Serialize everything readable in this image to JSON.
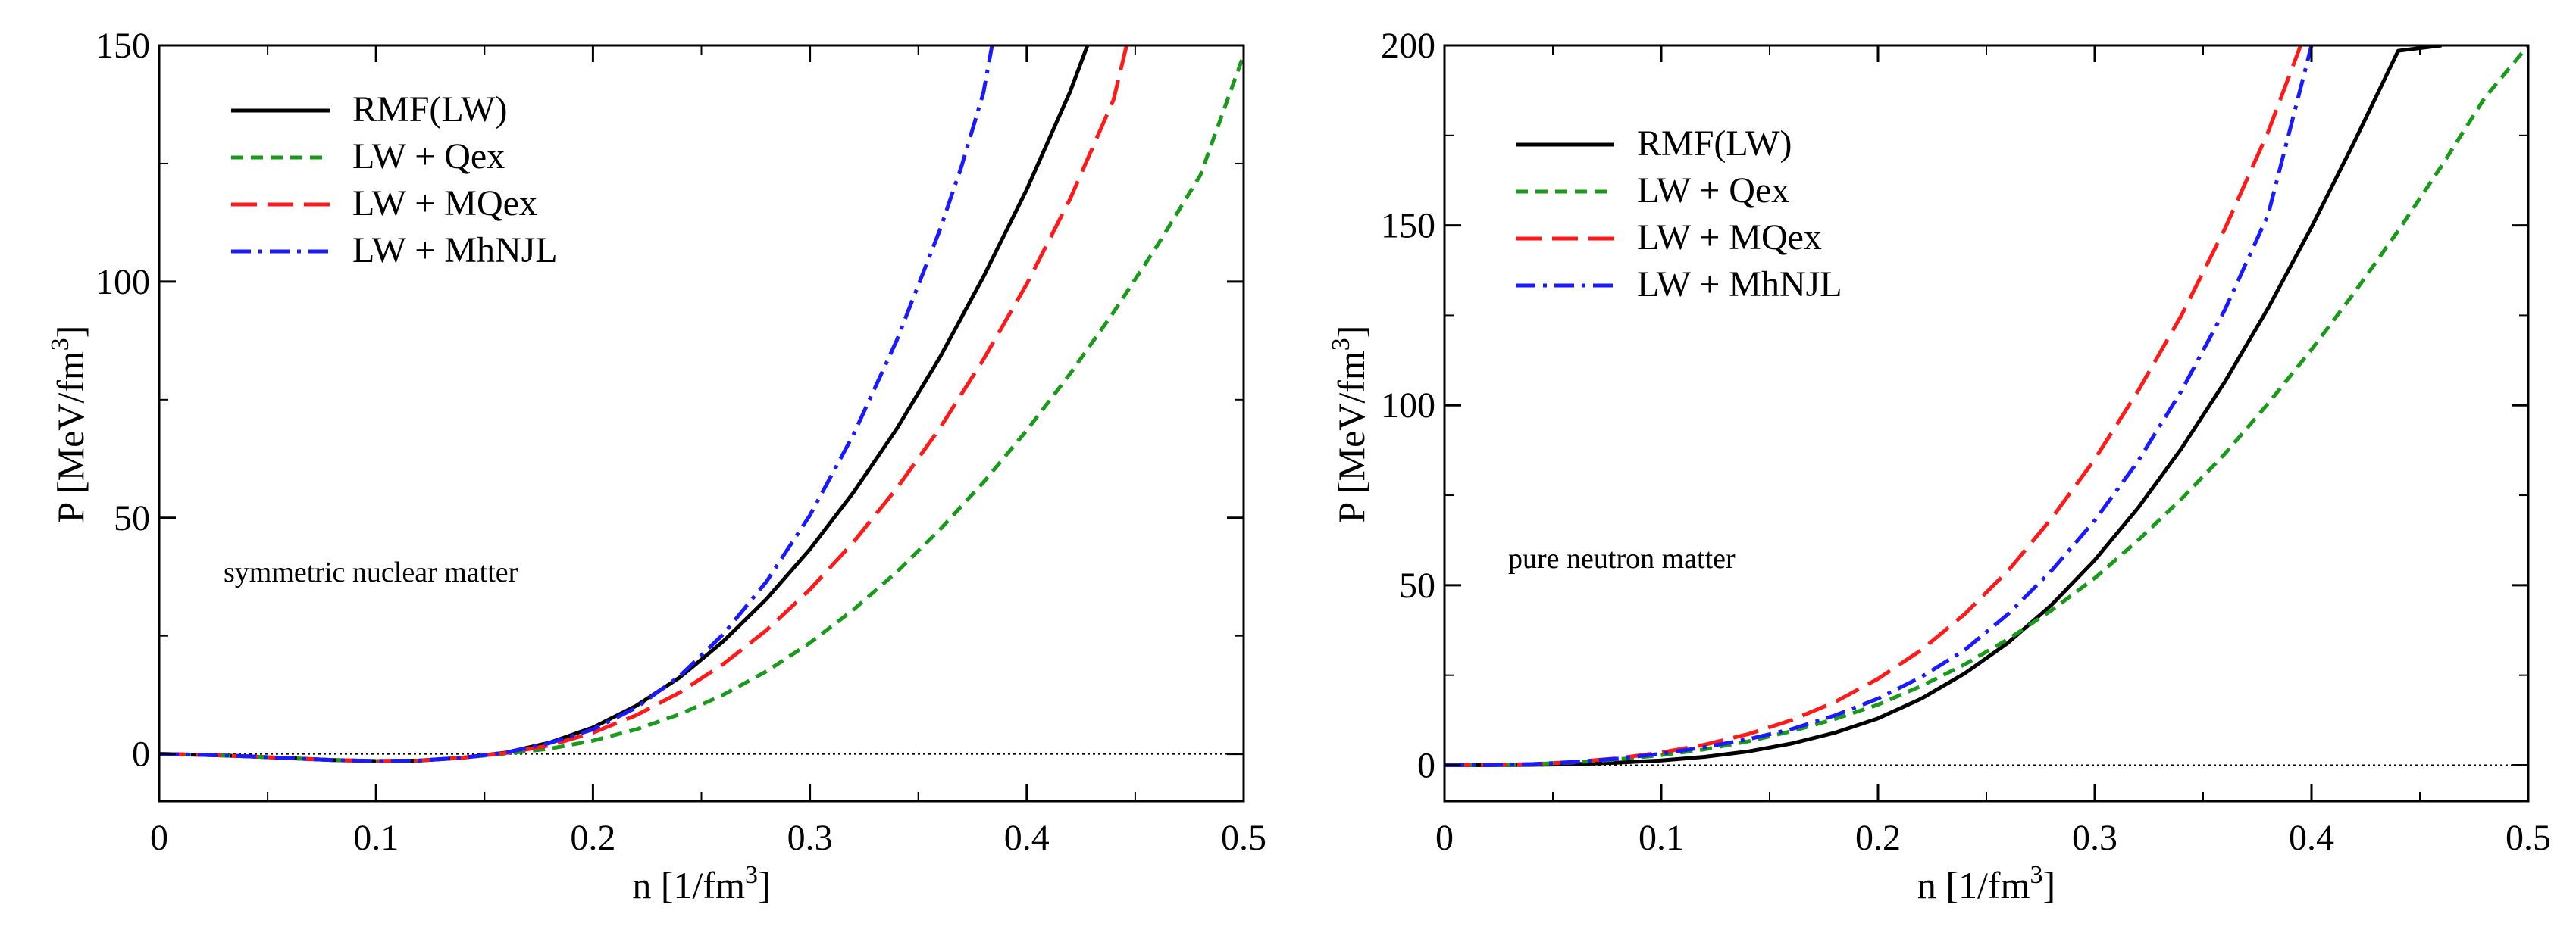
{
  "chart_data": [
    {
      "type": "line",
      "annotation": "symmetric nuclear matter",
      "xlabel": "n [1/fm",
      "xlabel_sup": "3",
      "xlabel_end": "]",
      "ylabel": "P [MeV/fm",
      "ylabel_sup": "3",
      "ylabel_end": "]",
      "xlim": [
        0,
        0.5
      ],
      "ylim": [
        -10,
        150
      ],
      "xticks": [
        0,
        0.1,
        0.2,
        0.3,
        0.4,
        0.5
      ],
      "xtick_labels": [
        "0",
        "0.1",
        "0.2",
        "0.3",
        "0.4",
        "0.5"
      ],
      "yticks": [
        0,
        50,
        100,
        150
      ],
      "ytick_labels": [
        "0",
        "50",
        "100",
        "150"
      ],
      "zero_line": true,
      "legend": "top-left",
      "series": [
        {
          "name": "RMF(LW)",
          "color": "#000000",
          "style": "solid",
          "x": [
            0,
            0.02,
            0.04,
            0.06,
            0.08,
            0.1,
            0.12,
            0.14,
            0.16,
            0.18,
            0.2,
            0.22,
            0.24,
            0.26,
            0.28,
            0.3,
            0.32,
            0.34,
            0.36,
            0.38,
            0.4,
            0.42,
            0.428
          ],
          "y": [
            0,
            -0.2,
            -0.5,
            -0.9,
            -1.3,
            -1.5,
            -1.4,
            -0.8,
            0.3,
            2.4,
            5.6,
            10.2,
            16.2,
            23.8,
            32.8,
            43.3,
            55.3,
            68.8,
            84.0,
            101,
            119.5,
            140.2,
            150
          ]
        },
        {
          "name": "LW + Qex",
          "color": "#1a9a1a",
          "style": "short-dash",
          "x": [
            0,
            0.02,
            0.04,
            0.06,
            0.08,
            0.1,
            0.12,
            0.14,
            0.16,
            0.18,
            0.2,
            0.22,
            0.24,
            0.26,
            0.28,
            0.3,
            0.32,
            0.34,
            0.36,
            0.38,
            0.4,
            0.42,
            0.44,
            0.46,
            0.48,
            0.5
          ],
          "y": [
            0,
            -0.2,
            -0.5,
            -0.9,
            -1.3,
            -1.5,
            -1.4,
            -0.8,
            0.1,
            1.1,
            2.8,
            5.2,
            8.4,
            12.5,
            17.5,
            23.5,
            30.5,
            38.5,
            47.5,
            57.5,
            68.5,
            80.5,
            93.5,
            107.5,
            122.5,
            148
          ]
        },
        {
          "name": "LW + MQex",
          "color": "#ff1a1a",
          "style": "long-dash",
          "x": [
            0,
            0.02,
            0.04,
            0.06,
            0.08,
            0.1,
            0.12,
            0.14,
            0.16,
            0.18,
            0.2,
            0.22,
            0.24,
            0.26,
            0.28,
            0.3,
            0.32,
            0.34,
            0.36,
            0.38,
            0.4,
            0.42,
            0.44,
            0.446
          ],
          "y": [
            0,
            -0.2,
            -0.5,
            -0.9,
            -1.3,
            -1.5,
            -1.4,
            -0.8,
            0.2,
            1.8,
            4.5,
            8.2,
            13.0,
            19.0,
            26.2,
            34.8,
            44.8,
            56.2,
            69.0,
            83.5,
            99.5,
            117.5,
            138.5,
            150
          ]
        },
        {
          "name": "LW + MhNJL",
          "color": "#1a1aff",
          "style": "dash-dot",
          "x": [
            0,
            0.02,
            0.04,
            0.06,
            0.08,
            0.1,
            0.12,
            0.14,
            0.16,
            0.18,
            0.2,
            0.22,
            0.24,
            0.26,
            0.28,
            0.3,
            0.32,
            0.34,
            0.36,
            0.37,
            0.38,
            0.384
          ],
          "y": [
            0,
            -0.2,
            -0.5,
            -0.9,
            -1.3,
            -1.5,
            -1.4,
            -0.8,
            0.3,
            2.3,
            5.2,
            9.8,
            16.5,
            25.3,
            36.5,
            50.5,
            67.5,
            87.5,
            111,
            124.5,
            140,
            150
          ]
        }
      ]
    },
    {
      "type": "line",
      "annotation": "pure neutron matter",
      "xlabel": "n [1/fm",
      "xlabel_sup": "3",
      "xlabel_end": "]",
      "ylabel": "P [MeV/fm",
      "ylabel_sup": "3",
      "ylabel_end": "]",
      "xlim": [
        0,
        0.5
      ],
      "ylim": [
        -10,
        200
      ],
      "xticks": [
        0,
        0.1,
        0.2,
        0.3,
        0.4,
        0.5
      ],
      "xtick_labels": [
        "0",
        "0.1",
        "0.2",
        "0.3",
        "0.4",
        "0.5"
      ],
      "yticks": [
        0,
        50,
        100,
        150,
        200
      ],
      "ytick_labels": [
        "0",
        "50",
        "100",
        "150",
        "200"
      ],
      "zero_line": true,
      "legend": "top-left",
      "series": [
        {
          "name": "RMF(LW)",
          "color": "#000000",
          "style": "solid",
          "x": [
            0,
            0.02,
            0.04,
            0.06,
            0.08,
            0.1,
            0.12,
            0.14,
            0.16,
            0.18,
            0.2,
            0.22,
            0.24,
            0.26,
            0.28,
            0.3,
            0.32,
            0.34,
            0.36,
            0.38,
            0.4,
            0.42,
            0.44,
            0.46
          ],
          "y": [
            0,
            0.02,
            0.1,
            0.3,
            0.7,
            1.3,
            2.3,
            3.8,
            6.0,
            9.0,
            13.0,
            18.5,
            25.5,
            34.0,
            44.5,
            57.0,
            71.5,
            88.0,
            106.5,
            127.0,
            149.5,
            173.5,
            198.5,
            200
          ]
        },
        {
          "name": "LW + Qex",
          "color": "#1a9a1a",
          "style": "short-dash",
          "x": [
            0,
            0.02,
            0.04,
            0.06,
            0.08,
            0.1,
            0.12,
            0.14,
            0.16,
            0.18,
            0.2,
            0.22,
            0.24,
            0.26,
            0.28,
            0.3,
            0.32,
            0.34,
            0.36,
            0.38,
            0.4,
            0.42,
            0.44,
            0.46,
            0.48,
            0.5
          ],
          "y": [
            0,
            0.05,
            0.3,
            0.8,
            1.6,
            2.8,
            4.4,
            6.6,
            9.4,
            12.8,
            16.8,
            22.0,
            28.0,
            35.0,
            43.0,
            52.0,
            62.5,
            74.0,
            86.5,
            100.5,
            115.5,
            131.5,
            148.5,
            166.5,
            185.5,
            200
          ]
        },
        {
          "name": "LW + MQex",
          "color": "#ff1a1a",
          "style": "long-dash",
          "x": [
            0,
            0.02,
            0.04,
            0.06,
            0.08,
            0.1,
            0.12,
            0.14,
            0.16,
            0.18,
            0.2,
            0.22,
            0.24,
            0.26,
            0.28,
            0.3,
            0.32,
            0.34,
            0.36,
            0.38,
            0.395
          ],
          "y": [
            0,
            0.05,
            0.3,
            0.9,
            1.9,
            3.5,
            5.7,
            8.6,
            12.5,
            17.5,
            24.0,
            32.0,
            42.0,
            54.0,
            68.5,
            85.0,
            104.0,
            125.0,
            149.0,
            176.0,
            200
          ]
        },
        {
          "name": "LW + MhNJL",
          "color": "#1a1aff",
          "style": "dash-dot",
          "x": [
            0,
            0.02,
            0.04,
            0.06,
            0.08,
            0.1,
            0.12,
            0.14,
            0.16,
            0.18,
            0.2,
            0.22,
            0.24,
            0.26,
            0.28,
            0.3,
            0.32,
            0.34,
            0.36,
            0.38,
            0.4
          ],
          "y": [
            0,
            0.05,
            0.3,
            0.9,
            1.8,
            3.2,
            5.0,
            7.2,
            10.0,
            13.8,
            18.5,
            24.5,
            32.0,
            42.0,
            54.0,
            68.0,
            84.5,
            104.0,
            126.5,
            153.0,
            200
          ]
        }
      ]
    }
  ]
}
